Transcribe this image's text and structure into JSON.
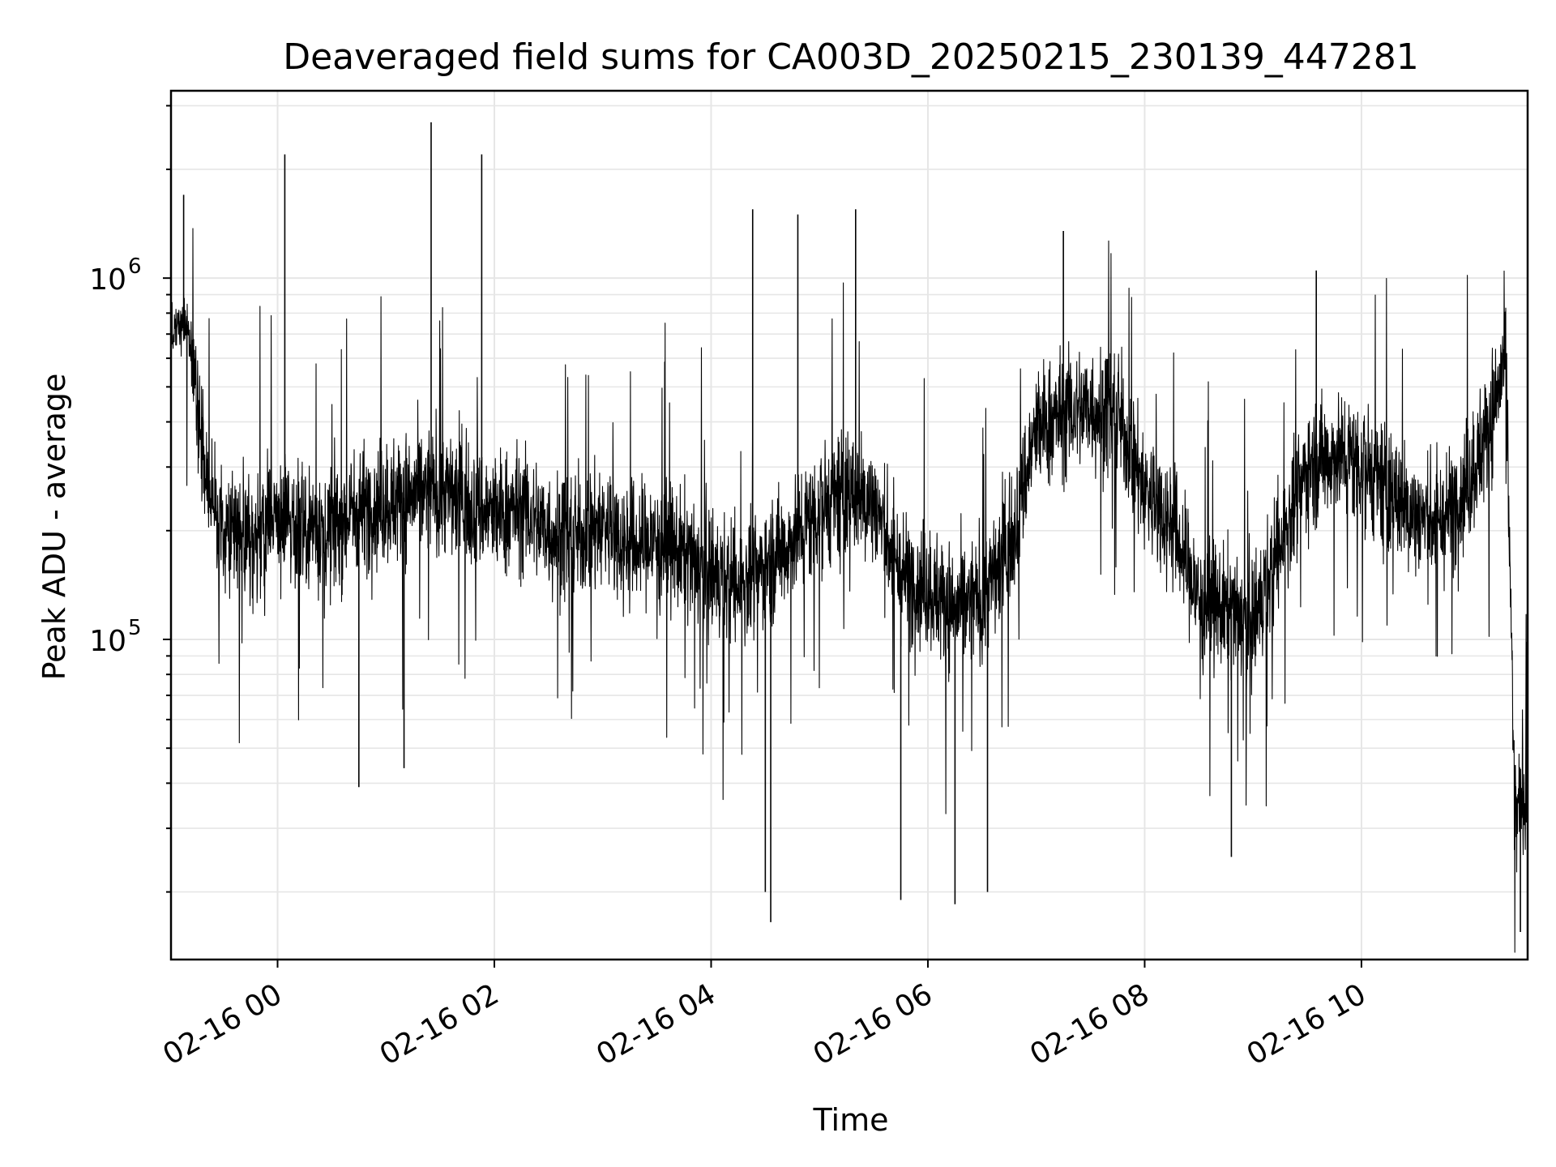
{
  "chart_data": {
    "type": "line",
    "title": "Deaveraged field sums for CA003D_20250215_230139_447281",
    "xlabel": "Time",
    "ylabel": "Peak ADU - average",
    "yscale": "log",
    "ylim": [
      13000,
      3300000
    ],
    "xlim": [
      "2025-02-15 23:01",
      "2025-02-16 11:32"
    ],
    "x_ticks": [
      {
        "value": "2025-02-16 00:00",
        "label": "02-16 00"
      },
      {
        "value": "2025-02-16 02:00",
        "label": "02-16 02"
      },
      {
        "value": "2025-02-16 04:00",
        "label": "02-16 04"
      },
      {
        "value": "2025-02-16 06:00",
        "label": "02-16 06"
      },
      {
        "value": "2025-02-16 08:00",
        "label": "02-16 08"
      },
      {
        "value": "2025-02-16 10:00",
        "label": "02-16 10"
      }
    ],
    "y_ticks": [
      {
        "value": 100000,
        "base": "10",
        "exp": "5"
      },
      {
        "value": 1000000,
        "base": "10",
        "exp": "6"
      }
    ],
    "grid": true,
    "line_color": "#000000",
    "grid_color": "#e6e6e6",
    "series": [
      {
        "x": [
          "2025-02-15 23:01",
          "2025-02-15 23:10",
          "2025-02-15 23:20",
          "2025-02-15 23:30",
          "2025-02-15 23:40",
          "2025-02-15 23:50",
          "2025-02-16 00:00",
          "2025-02-16 00:15",
          "2025-02-16 00:30",
          "2025-02-16 00:45",
          "2025-02-16 01:00",
          "2025-02-16 01:15",
          "2025-02-16 01:30",
          "2025-02-16 01:45",
          "2025-02-16 02:00",
          "2025-02-16 02:15",
          "2025-02-16 02:30",
          "2025-02-16 02:45",
          "2025-02-16 03:00",
          "2025-02-16 03:15",
          "2025-02-16 03:30",
          "2025-02-16 03:45",
          "2025-02-16 04:00",
          "2025-02-16 04:15",
          "2025-02-16 04:30",
          "2025-02-16 04:45",
          "2025-02-16 05:00",
          "2025-02-16 05:15",
          "2025-02-16 05:30",
          "2025-02-16 05:45",
          "2025-02-16 06:00",
          "2025-02-16 06:15",
          "2025-02-16 06:30",
          "2025-02-16 06:45",
          "2025-02-16 07:00",
          "2025-02-16 07:15",
          "2025-02-16 07:30",
          "2025-02-16 07:45",
          "2025-02-16 08:00",
          "2025-02-16 08:15",
          "2025-02-16 08:30",
          "2025-02-16 08:45",
          "2025-02-16 09:00",
          "2025-02-16 09:15",
          "2025-02-16 09:30",
          "2025-02-16 09:45",
          "2025-02-16 10:00",
          "2025-02-16 10:15",
          "2025-02-16 10:30",
          "2025-02-16 10:45",
          "2025-02-16 11:00",
          "2025-02-16 11:10",
          "2025-02-16 11:20",
          "2025-02-16 11:25",
          "2025-02-16 11:30"
        ],
        "y": [
          700000,
          750000,
          280000,
          200000,
          210000,
          190000,
          220000,
          210000,
          200000,
          230000,
          240000,
          250000,
          260000,
          240000,
          220000,
          230000,
          200000,
          190000,
          210000,
          180000,
          190000,
          170000,
          150000,
          140000,
          160000,
          190000,
          230000,
          260000,
          240000,
          150000,
          140000,
          120000,
          130000,
          180000,
          380000,
          420000,
          440000,
          420000,
          260000,
          210000,
          130000,
          120000,
          110000,
          180000,
          300000,
          330000,
          310000,
          260000,
          220000,
          210000,
          280000,
          380000,
          600000,
          30000,
          40000
        ],
        "spikes_high": [
          {
            "x": "2025-02-15 23:08",
            "y": 1700000
          },
          {
            "x": "2025-02-16 00:04",
            "y": 2200000
          },
          {
            "x": "2025-02-16 01:25",
            "y": 2700000
          },
          {
            "x": "2025-02-16 01:53",
            "y": 2200000
          },
          {
            "x": "2025-02-16 04:23",
            "y": 1550000
          },
          {
            "x": "2025-02-16 04:48",
            "y": 1500000
          },
          {
            "x": "2025-02-16 05:20",
            "y": 1550000
          },
          {
            "x": "2025-02-16 07:15",
            "y": 1350000
          },
          {
            "x": "2025-02-16 09:35",
            "y": 1050000
          }
        ],
        "spikes_low": [
          {
            "x": "2025-02-16 00:45",
            "y": 39000
          },
          {
            "x": "2025-02-16 01:10",
            "y": 44000
          },
          {
            "x": "2025-02-16 04:30",
            "y": 20000
          },
          {
            "x": "2025-02-16 04:33",
            "y": 16500
          },
          {
            "x": "2025-02-16 05:45",
            "y": 19000
          },
          {
            "x": "2025-02-16 06:15",
            "y": 18500
          },
          {
            "x": "2025-02-16 06:33",
            "y": 20000
          },
          {
            "x": "2025-02-16 08:48",
            "y": 25000
          },
          {
            "x": "2025-02-16 11:28",
            "y": 15500
          }
        ]
      }
    ]
  }
}
